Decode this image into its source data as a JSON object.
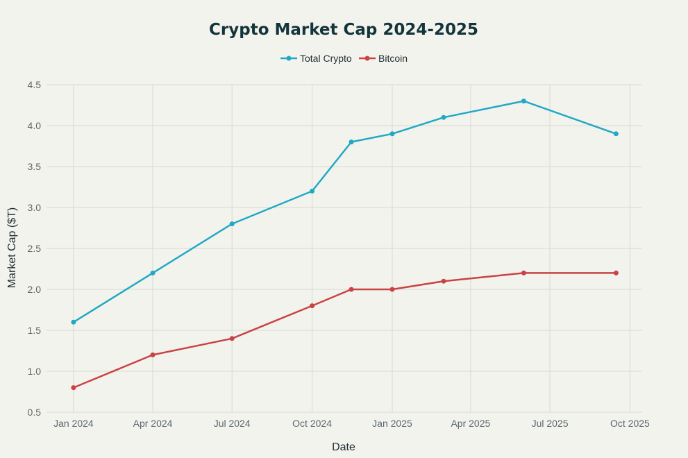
{
  "chart_data": {
    "type": "line",
    "title": "Crypto Market Cap 2024-2025",
    "xlabel": "Date",
    "ylabel": "Market Cap ($T)",
    "ylim": [
      0.5,
      4.5
    ],
    "yticks": [
      "0.5",
      "1.0",
      "1.5",
      "2.0",
      "2.5",
      "3.0",
      "3.5",
      "4.0",
      "4.5"
    ],
    "xlim": [
      "2023-12-01",
      "2025-10-15"
    ],
    "xticks": [
      {
        "date": "2024-01-01",
        "label": "Jan 2024"
      },
      {
        "date": "2024-04-01",
        "label": "Apr 2024"
      },
      {
        "date": "2024-07-01",
        "label": "Jul 2024"
      },
      {
        "date": "2024-10-01",
        "label": "Oct 2024"
      },
      {
        "date": "2025-01-01",
        "label": "Jan 2025"
      },
      {
        "date": "2025-04-01",
        "label": "Apr 2025"
      },
      {
        "date": "2025-07-01",
        "label": "Jul 2025"
      },
      {
        "date": "2025-10-01",
        "label": "Oct 2025"
      }
    ],
    "x": [
      "2024-01-01",
      "2024-04-01",
      "2024-07-01",
      "2024-10-01",
      "2024-11-15",
      "2025-01-01",
      "2025-03-01",
      "2025-06-01",
      "2025-09-15"
    ],
    "series": [
      {
        "name": "Total Crypto",
        "color": "#21a9c4",
        "values": [
          1.6,
          2.2,
          2.8,
          3.2,
          3.8,
          3.9,
          4.1,
          4.3,
          3.9
        ]
      },
      {
        "name": "Bitcoin",
        "color": "#c94343",
        "values": [
          0.8,
          1.2,
          1.4,
          1.8,
          2.0,
          2.0,
          2.1,
          2.2,
          2.2
        ]
      }
    ],
    "grid": true,
    "legend_position": "top-center"
  }
}
